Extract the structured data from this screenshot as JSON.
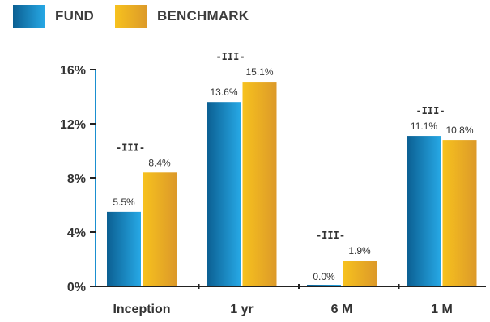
{
  "legend": {
    "items": [
      {
        "label": "FUND",
        "color": "#1b8fcf"
      },
      {
        "label": "BENCHMARK",
        "color": "#e9a92a"
      }
    ]
  },
  "chart_data": {
    "type": "bar",
    "categories": [
      "Inception",
      "1 yr",
      "6 M",
      "1 M"
    ],
    "series": [
      {
        "name": "FUND",
        "values": [
          5.5,
          13.6,
          0.0,
          11.1
        ],
        "labels": [
          "5.5%",
          "13.6%",
          "0.0%",
          "11.1%"
        ]
      },
      {
        "name": "BENCHMARK",
        "values": [
          8.4,
          15.1,
          1.9,
          10.8
        ],
        "labels": [
          "8.4%",
          "15.1%",
          "1.9%",
          "10.8%"
        ]
      }
    ],
    "annotations": [
      "-III-",
      "-III-",
      "-III-",
      "-III-"
    ],
    "yticks": [
      0,
      4,
      8,
      12,
      16
    ],
    "ytick_labels": [
      "0%",
      "4%",
      "8%",
      "12%",
      "16%"
    ],
    "ylim": [
      0,
      16
    ],
    "title": "",
    "xlabel": "",
    "ylabel": "",
    "legend_position": "top-left",
    "grid": false,
    "colors": {
      "fund": "#1b8fcf",
      "benchmark": "#e9a92a",
      "axis": "#1a8fd0",
      "baseline": "#222222"
    }
  }
}
